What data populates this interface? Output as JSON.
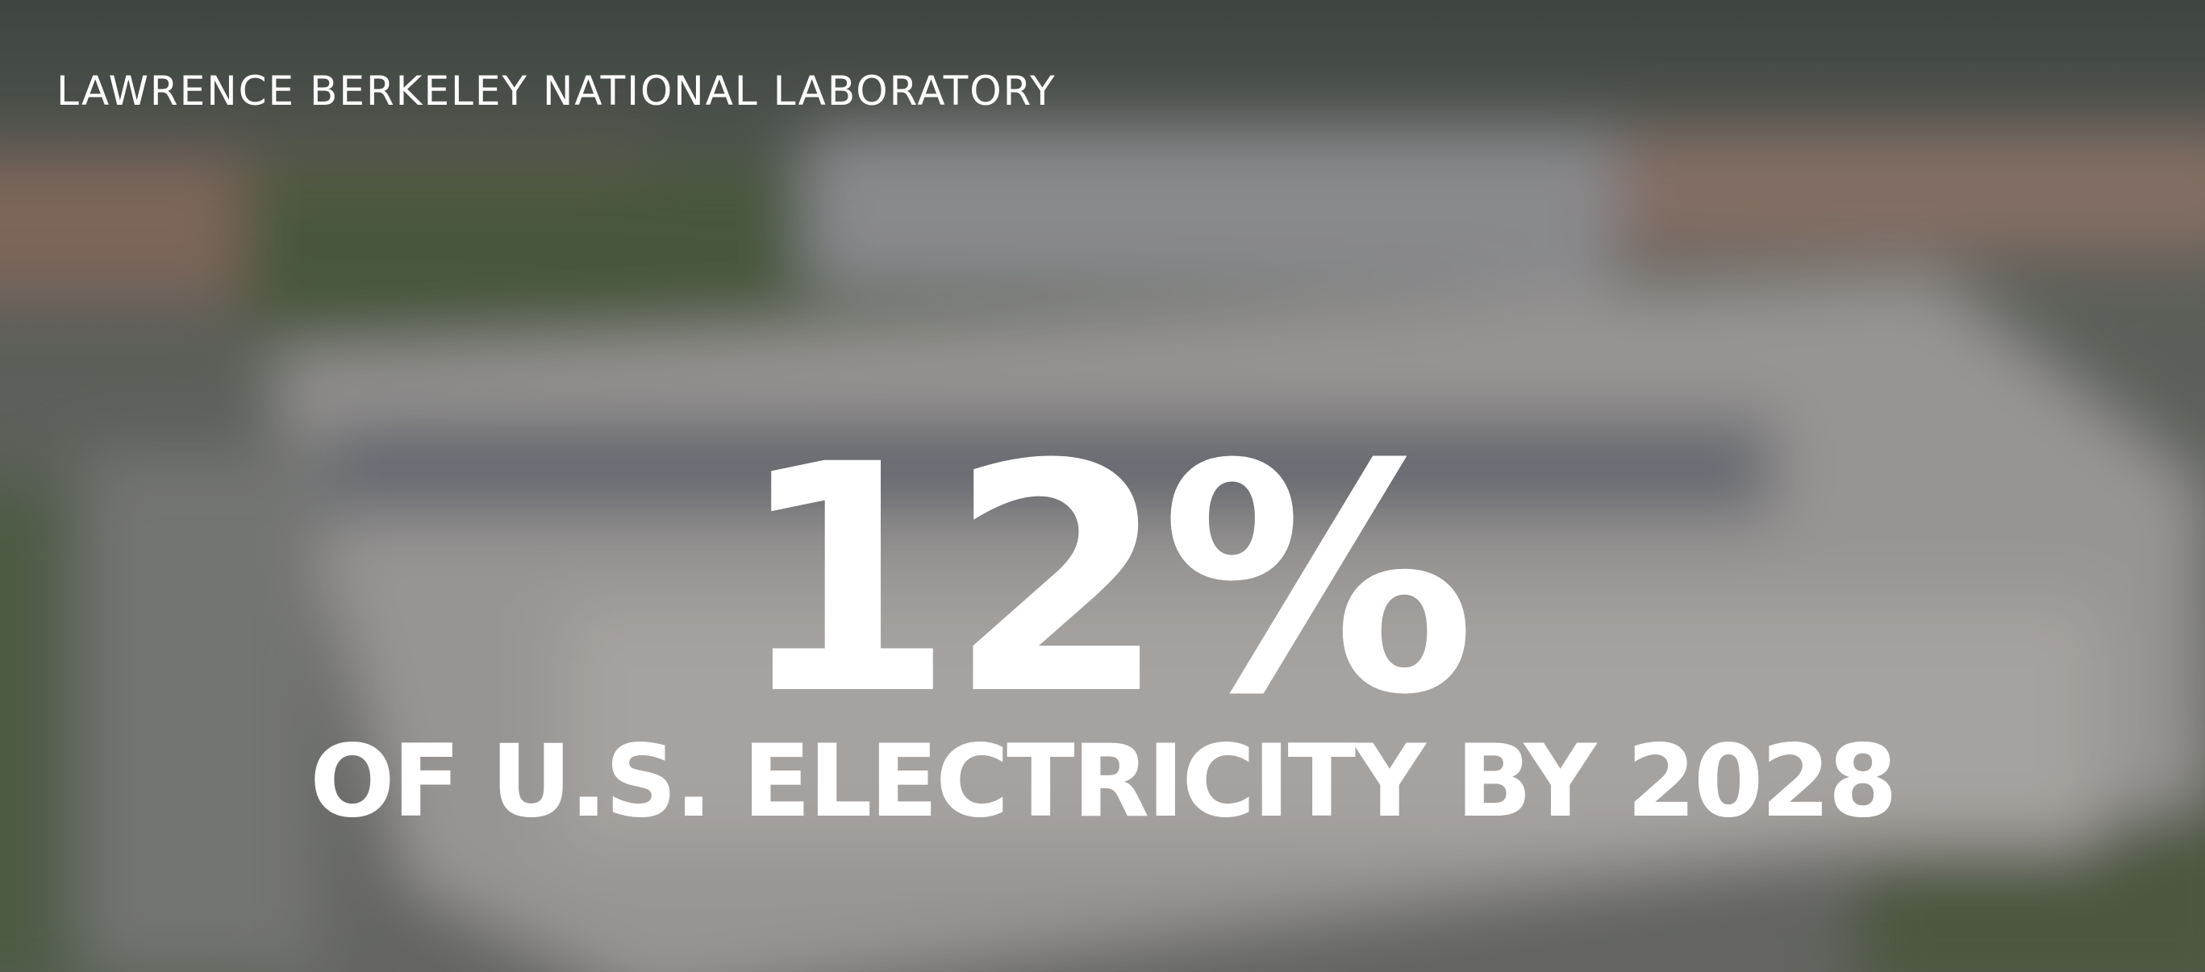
{
  "source": "LAWRENCE BERKELEY NATIONAL LABORATORY",
  "headline": "12%",
  "subheadline": "OF U.S. ELECTRICITY BY 2028"
}
